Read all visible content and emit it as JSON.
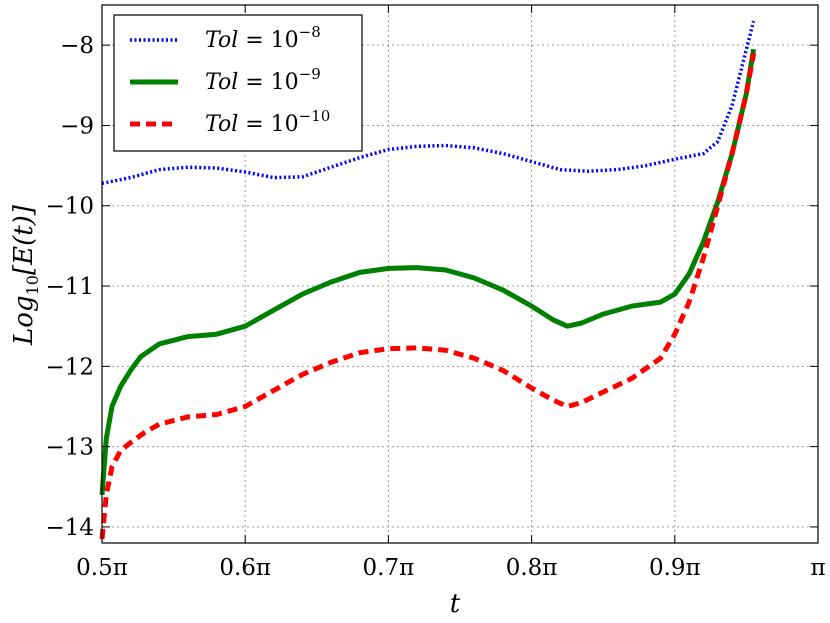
{
  "chart_data": {
    "type": "line",
    "title": "",
    "xlabel": "t",
    "ylabel": "Log10[E(t)]",
    "ylabel_parts": {
      "base": "Log",
      "sub": "10",
      "rest": "[E(t)]"
    },
    "xlim": [
      0.5,
      1.0
    ],
    "ylim": [
      -14.2,
      -7.5
    ],
    "x_unit": "π",
    "x_ticks": [
      0.5,
      0.6,
      0.7,
      0.8,
      0.9,
      1.0
    ],
    "x_tick_labels": [
      "0.5π",
      "0.6π",
      "0.7π",
      "0.8π",
      "0.9π",
      "π"
    ],
    "y_ticks": [
      -14,
      -13,
      -12,
      -11,
      -10,
      -9,
      -8
    ],
    "y_tick_labels": [
      "−14",
      "−13",
      "−12",
      "−11",
      "−10",
      "−9",
      "−8"
    ],
    "grid": true,
    "legend_position": "top-left",
    "series": [
      {
        "name": "Tol = 10^-8",
        "legend": {
          "prefix": "Tol",
          "eq": " = 10",
          "exp": "−8"
        },
        "color": "#0000ff",
        "style": "dotted",
        "x": [
          0.5,
          0.52,
          0.54,
          0.56,
          0.58,
          0.6,
          0.62,
          0.64,
          0.66,
          0.68,
          0.7,
          0.72,
          0.74,
          0.76,
          0.78,
          0.8,
          0.82,
          0.84,
          0.86,
          0.88,
          0.9,
          0.92,
          0.93,
          0.94,
          0.95,
          0.955
        ],
        "y": [
          -9.72,
          -9.65,
          -9.55,
          -9.52,
          -9.53,
          -9.58,
          -9.65,
          -9.64,
          -9.52,
          -9.4,
          -9.3,
          -9.26,
          -9.25,
          -9.28,
          -9.35,
          -9.45,
          -9.55,
          -9.57,
          -9.55,
          -9.5,
          -9.42,
          -9.35,
          -9.2,
          -8.75,
          -8.05,
          -7.7
        ]
      },
      {
        "name": "Tol = 10^-9",
        "legend": {
          "prefix": "Tol",
          "eq": " = 10",
          "exp": "−9"
        },
        "color": "#008000",
        "style": "solid",
        "x": [
          0.5,
          0.503,
          0.507,
          0.513,
          0.52,
          0.527,
          0.54,
          0.56,
          0.58,
          0.6,
          0.62,
          0.64,
          0.66,
          0.68,
          0.7,
          0.72,
          0.74,
          0.76,
          0.78,
          0.8,
          0.815,
          0.825,
          0.835,
          0.85,
          0.87,
          0.89,
          0.9,
          0.91,
          0.92,
          0.93,
          0.94,
          0.95,
          0.955
        ],
        "y": [
          -13.6,
          -12.9,
          -12.5,
          -12.25,
          -12.05,
          -11.88,
          -11.72,
          -11.63,
          -11.6,
          -11.5,
          -11.3,
          -11.1,
          -10.95,
          -10.83,
          -10.78,
          -10.77,
          -10.8,
          -10.9,
          -11.05,
          -11.25,
          -11.42,
          -11.5,
          -11.46,
          -11.35,
          -11.25,
          -11.2,
          -11.1,
          -10.85,
          -10.45,
          -9.95,
          -9.35,
          -8.6,
          -8.05
        ]
      },
      {
        "name": "Tol = 10^-10",
        "legend": {
          "prefix": "Tol",
          "eq": " = 10",
          "exp": "−10"
        },
        "color": "#ff0000",
        "style": "dashed",
        "x": [
          0.5,
          0.503,
          0.507,
          0.513,
          0.52,
          0.53,
          0.54,
          0.56,
          0.58,
          0.6,
          0.62,
          0.64,
          0.66,
          0.68,
          0.7,
          0.72,
          0.74,
          0.76,
          0.78,
          0.8,
          0.815,
          0.825,
          0.835,
          0.85,
          0.87,
          0.89,
          0.9,
          0.91,
          0.92,
          0.93,
          0.94,
          0.95,
          0.955
        ],
        "y": [
          -14.15,
          -13.6,
          -13.25,
          -13.05,
          -12.95,
          -12.82,
          -12.72,
          -12.63,
          -12.6,
          -12.5,
          -12.3,
          -12.1,
          -11.95,
          -11.83,
          -11.78,
          -11.77,
          -11.8,
          -11.9,
          -12.05,
          -12.27,
          -12.42,
          -12.5,
          -12.45,
          -12.32,
          -12.15,
          -11.9,
          -11.6,
          -11.2,
          -10.65,
          -10.0,
          -9.35,
          -8.6,
          -8.1
        ]
      }
    ]
  }
}
